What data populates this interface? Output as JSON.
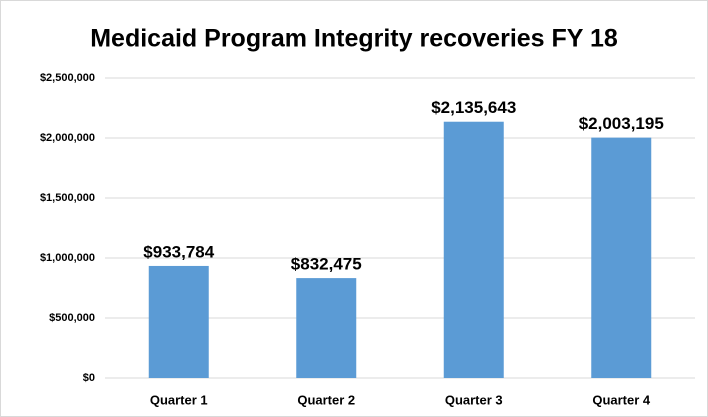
{
  "chart_data": {
    "type": "bar",
    "title": "Medicaid Program Integrity recoveries FY 18",
    "categories": [
      "Quarter 1",
      "Quarter 2",
      "Quarter 3",
      "Quarter 4"
    ],
    "values": [
      933784,
      832475,
      2135643,
      2003195
    ],
    "value_labels": [
      "$933,784",
      "$832,475",
      "$2,135,643",
      "$2,003,195"
    ],
    "color": "#5b9bd5",
    "ylim": [
      0,
      2500000
    ],
    "yticks": [
      {
        "value": 0,
        "label": "$0"
      },
      {
        "value": 500000,
        "label": "$500,000"
      },
      {
        "value": 1000000,
        "label": "$1,000,000"
      },
      {
        "value": 1500000,
        "label": "$1,500,000"
      },
      {
        "value": 2000000,
        "label": "$2,000,000"
      },
      {
        "value": 2500000,
        "label": "$2,500,000"
      }
    ],
    "grid": true
  }
}
